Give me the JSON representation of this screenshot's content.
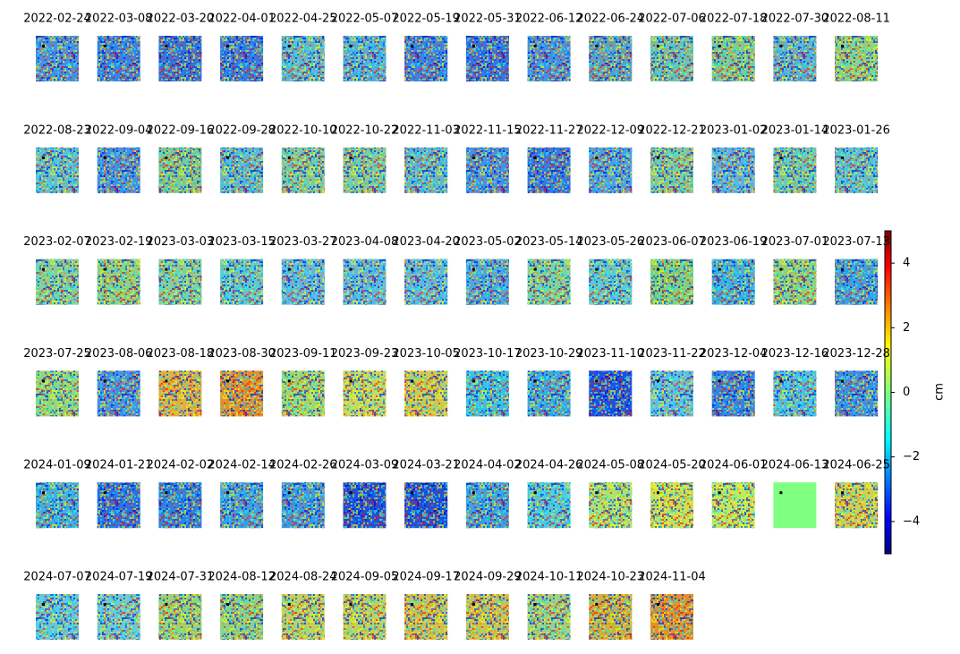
{
  "chart_data": {
    "type": "image-grid",
    "panels": [
      {
        "title": "2022-02-24",
        "color": "#4a90e0"
      },
      {
        "title": "2022-03-08",
        "color": "#3f80e0"
      },
      {
        "title": "2022-03-20",
        "color": "#3a70d8"
      },
      {
        "title": "2022-04-01",
        "color": "#3a78e0"
      },
      {
        "title": "2022-04-25",
        "color": "#60b8d0"
      },
      {
        "title": "2022-05-07",
        "color": "#50b0e0"
      },
      {
        "title": "2022-05-19",
        "color": "#4080e0"
      },
      {
        "title": "2022-05-31",
        "color": "#3a70e0"
      },
      {
        "title": "2022-06-12",
        "color": "#4a90e0"
      },
      {
        "title": "2022-06-24",
        "color": "#60a0c0"
      },
      {
        "title": "2022-07-06",
        "color": "#70c0b0"
      },
      {
        "title": "2022-07-18",
        "color": "#80c890"
      },
      {
        "title": "2022-07-30",
        "color": "#60b0d0"
      },
      {
        "title": "2022-08-11",
        "color": "#90d080"
      },
      {
        "title": "2022-08-23",
        "color": "#60c0d0"
      },
      {
        "title": "2022-09-04",
        "color": "#4a90e0"
      },
      {
        "title": "2022-09-16",
        "color": "#80c890"
      },
      {
        "title": "2022-09-28",
        "color": "#60b8d0"
      },
      {
        "title": "2022-10-10",
        "color": "#80c8a0"
      },
      {
        "title": "2022-10-22",
        "color": "#80c8a0"
      },
      {
        "title": "2022-11-03",
        "color": "#60b8d0"
      },
      {
        "title": "2022-11-15",
        "color": "#4a90e0"
      },
      {
        "title": "2022-11-27",
        "color": "#3a78e0"
      },
      {
        "title": "2022-12-09",
        "color": "#50a0e0"
      },
      {
        "title": "2022-12-21",
        "color": "#80c8a0"
      },
      {
        "title": "2023-01-02",
        "color": "#60b0e0"
      },
      {
        "title": "2023-01-14",
        "color": "#70c8b0"
      },
      {
        "title": "2023-01-26",
        "color": "#60c0d0"
      },
      {
        "title": "2023-02-07",
        "color": "#80d0a0"
      },
      {
        "title": "2023-02-19",
        "color": "#90d080"
      },
      {
        "title": "2023-03-03",
        "color": "#80d0a0"
      },
      {
        "title": "2023-03-15",
        "color": "#60c8d0"
      },
      {
        "title": "2023-03-27",
        "color": "#60b8e0"
      },
      {
        "title": "2023-04-08",
        "color": "#60b8e0"
      },
      {
        "title": "2023-04-20",
        "color": "#60b8e0"
      },
      {
        "title": "2023-05-02",
        "color": "#50a8e0"
      },
      {
        "title": "2023-05-14",
        "color": "#80d0a0"
      },
      {
        "title": "2023-05-26",
        "color": "#60c8d0"
      },
      {
        "title": "2023-06-07",
        "color": "#80d080"
      },
      {
        "title": "2023-06-19",
        "color": "#40b0e0"
      },
      {
        "title": "2023-07-01",
        "color": "#90d080"
      },
      {
        "title": "2023-07-13",
        "color": "#40a0e0"
      },
      {
        "title": "2023-07-25",
        "color": "#90d880"
      },
      {
        "title": "2023-08-06",
        "color": "#4a90e0"
      },
      {
        "title": "2023-08-18",
        "color": "#e0b040"
      },
      {
        "title": "2023-08-30",
        "color": "#e09030"
      },
      {
        "title": "2023-09-11",
        "color": "#a0d870"
      },
      {
        "title": "2023-09-23",
        "color": "#c8d860"
      },
      {
        "title": "2023-10-05",
        "color": "#d0c850"
      },
      {
        "title": "2023-10-17",
        "color": "#40c0e0"
      },
      {
        "title": "2023-10-29",
        "color": "#40a8e0"
      },
      {
        "title": "2023-11-10",
        "color": "#2050e0"
      },
      {
        "title": "2023-11-22",
        "color": "#60c0e0"
      },
      {
        "title": "2023-12-04",
        "color": "#3a80e0"
      },
      {
        "title": "2023-12-16",
        "color": "#50c0e0"
      },
      {
        "title": "2023-12-28",
        "color": "#4090e0"
      },
      {
        "title": "2024-01-09",
        "color": "#40b0e0"
      },
      {
        "title": "2024-01-21",
        "color": "#3070e0"
      },
      {
        "title": "2024-02-02",
        "color": "#3080e0"
      },
      {
        "title": "2024-02-14",
        "color": "#40a0e0"
      },
      {
        "title": "2024-02-26",
        "color": "#4098e0"
      },
      {
        "title": "2024-03-09",
        "color": "#2050d8"
      },
      {
        "title": "2024-03-21",
        "color": "#2050d8"
      },
      {
        "title": "2024-04-02",
        "color": "#40a0e0"
      },
      {
        "title": "2024-04-26",
        "color": "#50c8e0"
      },
      {
        "title": "2024-05-08",
        "color": "#b0e070"
      },
      {
        "title": "2024-05-20",
        "color": "#d0e050"
      },
      {
        "title": "2024-06-01",
        "color": "#c0e860"
      },
      {
        "title": "2024-06-13",
        "color": "#80ff80",
        "noisy": false
      },
      {
        "title": "2024-06-25",
        "color": "#d0d050"
      },
      {
        "title": "2024-07-07",
        "color": "#60c8e0"
      },
      {
        "title": "2024-07-19",
        "color": "#70c8d0"
      },
      {
        "title": "2024-07-31",
        "color": "#a0d070"
      },
      {
        "title": "2024-08-12",
        "color": "#90d080"
      },
      {
        "title": "2024-08-24",
        "color": "#c0d060"
      },
      {
        "title": "2024-09-05",
        "color": "#c0d060"
      },
      {
        "title": "2024-09-17",
        "color": "#d0c050"
      },
      {
        "title": "2024-09-29",
        "color": "#d0c050"
      },
      {
        "title": "2024-10-11",
        "color": "#a0d080"
      },
      {
        "title": "2024-10-23",
        "color": "#d0b040"
      },
      {
        "title": "2024-11-04",
        "color": "#e09030"
      }
    ],
    "columns": 14,
    "colorbar": {
      "label": "cm",
      "lim": [
        -5,
        5
      ],
      "ticks": [
        {
          "value": -4,
          "label": "−4"
        },
        {
          "value": -2,
          "label": "−2"
        },
        0,
        2,
        4
      ]
    }
  }
}
